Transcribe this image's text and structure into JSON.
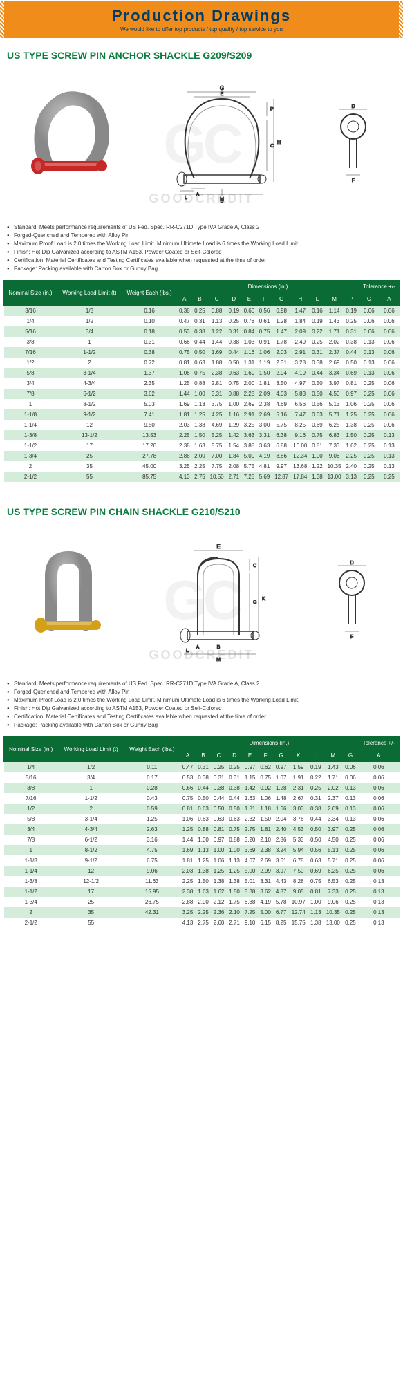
{
  "header": {
    "title": "Production Drawings",
    "subtitle": "We would like to offer top products / top quality / top service to you"
  },
  "watermark_logo": "GC",
  "watermark_text": "GOODCREDIT",
  "sections": [
    {
      "title": "US TYPE SCREW PIN ANCHOR SHACKLE G209/S209",
      "pin_color": "#c62828",
      "specs": [
        "Standard: Meets performance requirements of US Fed. Spec. RR-C271D Type IVA Grade A, Class 2",
        "Forged-Quenched and Tempered with Alloy Pin",
        "Maximum Proof Load is 2.0 times the Working Load Limit. Minimum Ultimate Load is 6 times the Working Load Limit.",
        "Finish: Hot Dip Galvanized according to ASTM A153, Powder Coated or Self-Colored",
        "Certification: Material Certificates and Testing Certificates available when requested at the time of order",
        "Package: Packing available with Carton Box or Gunny Bag"
      ],
      "table": {
        "main_headers": [
          "Nominal Size (in.)",
          "Working Load Limit (t)",
          "Weight Each (lbs.)"
        ],
        "dim_label": "Dimensions (in.)",
        "tol_label": "Tolerance +/-",
        "dim_cols": [
          "A",
          "B",
          "C",
          "D",
          "E",
          "F",
          "G",
          "H",
          "L",
          "M",
          "P"
        ],
        "tol_cols": [
          "C",
          "A"
        ],
        "rows": [
          [
            "3/16",
            "1/3",
            "0.16",
            "0.38",
            "0.25",
            "0.88",
            "0.19",
            "0.60",
            "0.56",
            "0.98",
            "1.47",
            "0.16",
            "1.14",
            "0.19",
            "0.06",
            "0.06"
          ],
          [
            "1/4",
            "1/2",
            "0.10",
            "0.47",
            "0.31",
            "1.13",
            "0.25",
            "0.78",
            "0.61",
            "1.28",
            "1.84",
            "0.19",
            "1.43",
            "0.25",
            "0.06",
            "0.06"
          ],
          [
            "5/16",
            "3/4",
            "0.18",
            "0.53",
            "0.38",
            "1.22",
            "0.31",
            "0.84",
            "0.75",
            "1.47",
            "2.09",
            "0.22",
            "1.71",
            "0.31",
            "0.06",
            "0.06"
          ],
          [
            "3/8",
            "1",
            "0.31",
            "0.66",
            "0.44",
            "1.44",
            "0.38",
            "1.03",
            "0.91",
            "1.78",
            "2.49",
            "0.25",
            "2.02",
            "0.38",
            "0.13",
            "0.06"
          ],
          [
            "7/16",
            "1-1/2",
            "0.38",
            "0.75",
            "0.50",
            "1.69",
            "0.44",
            "1.16",
            "1.06",
            "2.03",
            "2.91",
            "0.31",
            "2.37",
            "0.44",
            "0.13",
            "0.06"
          ],
          [
            "1/2",
            "2",
            "0.72",
            "0.81",
            "0.63",
            "1.88",
            "0.50",
            "1.31",
            "1.19",
            "2.31",
            "3.28",
            "0.38",
            "2.69",
            "0.50",
            "0.13",
            "0.06"
          ],
          [
            "5/8",
            "3-1/4",
            "1.37",
            "1.06",
            "0.75",
            "2.38",
            "0.63",
            "1.69",
            "1.50",
            "2.94",
            "4.19",
            "0.44",
            "3.34",
            "0.69",
            "0.13",
            "0.06"
          ],
          [
            "3/4",
            "4-3/4",
            "2.35",
            "1.25",
            "0.88",
            "2.81",
            "0.75",
            "2.00",
            "1.81",
            "3.50",
            "4.97",
            "0.50",
            "3.97",
            "0.81",
            "0.25",
            "0.06"
          ],
          [
            "7/8",
            "6-1/2",
            "3.62",
            "1.44",
            "1.00",
            "3.31",
            "0.88",
            "2.28",
            "2.09",
            "4.03",
            "5.83",
            "0.50",
            "4.50",
            "0.97",
            "0.25",
            "0.06"
          ],
          [
            "1",
            "8-1/2",
            "5.03",
            "1.69",
            "1.13",
            "3.75",
            "1.00",
            "2.69",
            "2.38",
            "4.69",
            "6.56",
            "0.56",
            "5.13",
            "1.06",
            "0.25",
            "0.06"
          ],
          [
            "1-1/8",
            "9-1/2",
            "7.41",
            "1.81",
            "1.25",
            "4.25",
            "1.16",
            "2.91",
            "2.69",
            "5.16",
            "7.47",
            "0.63",
            "5.71",
            "1.25",
            "0.25",
            "0.06"
          ],
          [
            "1-1/4",
            "12",
            "9.50",
            "2.03",
            "1.38",
            "4.69",
            "1.29",
            "3.25",
            "3.00",
            "5.75",
            "8.25",
            "0.69",
            "6.25",
            "1.38",
            "0.25",
            "0.06"
          ],
          [
            "1-3/8",
            "13-1/2",
            "13.53",
            "2.25",
            "1.50",
            "5.25",
            "1.42",
            "3.63",
            "3.31",
            "6.38",
            "9.16",
            "0.75",
            "6.83",
            "1.50",
            "0.25",
            "0.13"
          ],
          [
            "1-1/2",
            "17",
            "17.20",
            "2.38",
            "1.63",
            "5.75",
            "1.54",
            "3.88",
            "3.63",
            "6.88",
            "10.00",
            "0.81",
            "7.33",
            "1.62",
            "0.25",
            "0.13"
          ],
          [
            "1-3/4",
            "25",
            "27.78",
            "2.88",
            "2.00",
            "7.00",
            "1.84",
            "5.00",
            "4.19",
            "8.86",
            "12.34",
            "1.00",
            "9.06",
            "2.25",
            "0.25",
            "0.13"
          ],
          [
            "2",
            "35",
            "45.00",
            "3.25",
            "2.25",
            "7.75",
            "2.08",
            "5.75",
            "4.81",
            "9.97",
            "13.68",
            "1.22",
            "10.35",
            "2.40",
            "0.25",
            "0.13"
          ],
          [
            "2-1/2",
            "55",
            "85.75",
            "4.13",
            "2.75",
            "10.50",
            "2.71",
            "7.25",
            "5.69",
            "12.87",
            "17.84",
            "1.38",
            "13.00",
            "3.13",
            "0.25",
            "0.25"
          ]
        ]
      }
    },
    {
      "title": "US TYPE SCREW PIN CHAIN SHACKLE G210/S210",
      "pin_color": "#d4a017",
      "specs": [
        "Standard: Meets performance requirements of US Fed. Spec. RR-C271D Type IVA Grade A, Class 2",
        "Forged-Quenched and Tempered with Alloy Pin",
        "Maximum Proof Load is 2.0 times the Working Load Limit. Minimum Ultimate Load is 6 times the Working Load Limit.",
        "Finish: Hot Dip Galvanized according to ASTM A153, Powder Coated or Self-Colored",
        "Certification: Material Certificates and Testing Certificates available when requested at the time of order",
        "Package: Packing available with Carton Box or Gunny Bag"
      ],
      "table": {
        "main_headers": [
          "Nominal Size (in.)",
          "Working Load Limit (t)",
          "Weight Each (lbs.)"
        ],
        "dim_label": "Dimensions (in.)",
        "tol_label": "Tolerance +/-",
        "dim_cols": [
          "A",
          "B",
          "C",
          "D",
          "E",
          "F",
          "G",
          "K",
          "L",
          "M",
          "G"
        ],
        "tol_cols": [
          "A"
        ],
        "rows": [
          [
            "1/4",
            "1/2",
            "0.11",
            "0.47",
            "0.31",
            "0.25",
            "0.25",
            "0.97",
            "0.62",
            "0.97",
            "1.59",
            "0.19",
            "1.43",
            "0.06",
            "0.06"
          ],
          [
            "5/16",
            "3/4",
            "0.17",
            "0.53",
            "0.38",
            "0.31",
            "0.31",
            "1.15",
            "0.75",
            "1.07",
            "1.91",
            "0.22",
            "1.71",
            "0.06",
            "0.06"
          ],
          [
            "3/8",
            "1",
            "0.28",
            "0.66",
            "0.44",
            "0.38",
            "0.38",
            "1.42",
            "0.92",
            "1.28",
            "2.31",
            "0.25",
            "2.02",
            "0.13",
            "0.06"
          ],
          [
            "7/16",
            "1-1/2",
            "0.43",
            "0.75",
            "0.50",
            "0.44",
            "0.44",
            "1.63",
            "1.06",
            "1.48",
            "2.67",
            "0.31",
            "2.37",
            "0.13",
            "0.06"
          ],
          [
            "1/2",
            "2",
            "0.59",
            "0.81",
            "0.63",
            "0.50",
            "0.50",
            "1.81",
            "1.18",
            "1.66",
            "3.03",
            "0.38",
            "2.69",
            "0.13",
            "0.06"
          ],
          [
            "5/8",
            "3-1/4",
            "1.25",
            "1.06",
            "0.63",
            "0.63",
            "0.63",
            "2.32",
            "1.50",
            "2.04",
            "3.76",
            "0.44",
            "3.34",
            "0.13",
            "0.06"
          ],
          [
            "3/4",
            "4-3/4",
            "2.63",
            "1.25",
            "0.88",
            "0.81",
            "0.75",
            "2.75",
            "1.81",
            "2.40",
            "4.53",
            "0.50",
            "3.97",
            "0.25",
            "0.06"
          ],
          [
            "7/8",
            "6-1/2",
            "3.16",
            "1.44",
            "1.00",
            "0.97",
            "0.88",
            "3.20",
            "2.10",
            "2.86",
            "5.33",
            "0.50",
            "4.50",
            "0.25",
            "0.06"
          ],
          [
            "1",
            "8-1/2",
            "4.75",
            "1.69",
            "1.13",
            "1.00",
            "1.00",
            "3.69",
            "2.38",
            "3.24",
            "5.94",
            "0.56",
            "5.13",
            "0.25",
            "0.06"
          ],
          [
            "1-1/8",
            "9-1/2",
            "6.75",
            "1.81",
            "1.25",
            "1.06",
            "1.13",
            "4.07",
            "2.69",
            "3.61",
            "6.78",
            "0.63",
            "5.71",
            "0.25",
            "0.06"
          ],
          [
            "1-1/4",
            "12",
            "9.06",
            "2.03",
            "1.38",
            "1.25",
            "1.25",
            "5.00",
            "2.99",
            "3.97",
            "7.50",
            "0.69",
            "6.25",
            "0.25",
            "0.06"
          ],
          [
            "1-3/8",
            "12-1/2",
            "11.63",
            "2.25",
            "1.50",
            "1.38",
            "1.38",
            "5.01",
            "3.31",
            "4.43",
            "8.28",
            "0.75",
            "6.53",
            "0.25",
            "0.13"
          ],
          [
            "1-1/2",
            "17",
            "15.95",
            "2.38",
            "1.63",
            "1.62",
            "1.50",
            "5.38",
            "3.62",
            "4.87",
            "9.05",
            "0.81",
            "7.33",
            "0.25",
            "0.13"
          ],
          [
            "1-3/4",
            "25",
            "26.75",
            "2.88",
            "2.00",
            "2.12",
            "1.75",
            "6.38",
            "4.19",
            "5.78",
            "10.97",
            "1.00",
            "9.06",
            "0.25",
            "0.13"
          ],
          [
            "2",
            "35",
            "42.31",
            "3.25",
            "2.25",
            "2.36",
            "2.10",
            "7.25",
            "5.00",
            "6.77",
            "12.74",
            "1.13",
            "10.35",
            "0.25",
            "0.13"
          ],
          [
            "2-1/2",
            "55",
            "",
            "4.13",
            "2.75",
            "2.60",
            "2.71",
            "9.10",
            "6.15",
            "8.25",
            "15.75",
            "1.38",
            "13.00",
            "0.25",
            "0.13"
          ]
        ]
      }
    }
  ],
  "colors": {
    "header_bg": "#f08c1a",
    "header_text": "#003d6b",
    "section_title": "#0a7d3e",
    "table_header": "#0a6b35",
    "row_alt": "#d4edda",
    "metal": "#c0c0c0",
    "metal_dark": "#808080"
  }
}
